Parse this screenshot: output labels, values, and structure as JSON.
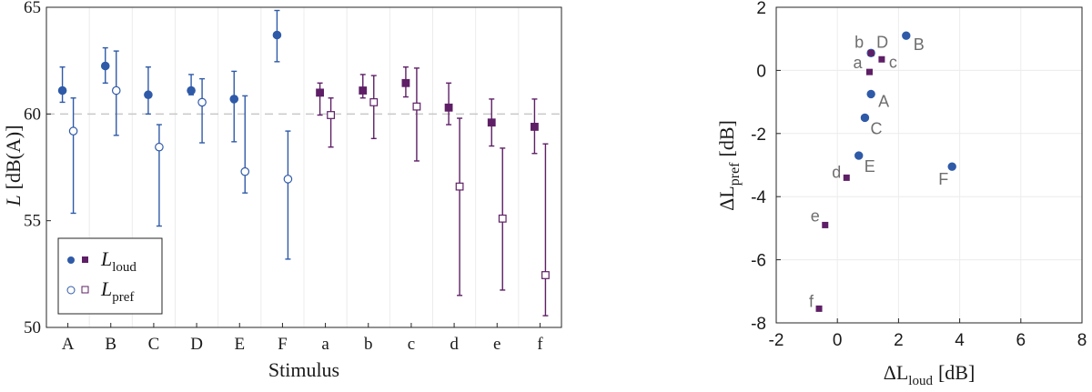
{
  "colors": {
    "blue": "#2f5aa8",
    "purple": "#5e1f66",
    "ref_line": "#c8c8c8",
    "grid": "#ececec"
  },
  "chart_data": [
    {
      "type": "scatter",
      "subtype": "error-bar",
      "xlabel": "Stimulus",
      "ylabel": "L",
      "ylabel_unit": "[dB(A)]",
      "categories": [
        "A",
        "B",
        "C",
        "D",
        "E",
        "F",
        "a",
        "b",
        "c",
        "d",
        "e",
        "f"
      ],
      "ylim": [
        50,
        65
      ],
      "yticks": [
        50,
        55,
        60,
        65
      ],
      "reference_line": 60,
      "grid": true,
      "legend_position": "bottom-left",
      "legend": [
        {
          "main": "L",
          "sub": "loud"
        },
        {
          "main": "L",
          "sub": "pref"
        }
      ],
      "series": [
        {
          "name": "L_loud",
          "marker": "filled",
          "values": [
            61.1,
            62.25,
            60.9,
            61.1,
            60.7,
            63.7,
            61.0,
            61.1,
            61.45,
            60.3,
            59.6,
            59.4
          ],
          "err_low": [
            60.55,
            61.45,
            60.0,
            60.9,
            58.7,
            62.45,
            59.95,
            60.75,
            60.8,
            59.5,
            58.5,
            58.15
          ],
          "err_high": [
            62.2,
            63.1,
            62.2,
            61.85,
            62.0,
            64.85,
            61.45,
            61.85,
            62.2,
            61.45,
            60.7,
            60.7
          ]
        },
        {
          "name": "L_pref",
          "marker": "open",
          "values": [
            59.2,
            61.1,
            58.45,
            60.55,
            57.3,
            56.95,
            59.95,
            60.55,
            60.35,
            56.6,
            55.1,
            52.45
          ],
          "err_low": [
            55.35,
            59.0,
            54.75,
            58.65,
            56.3,
            53.2,
            58.45,
            58.85,
            57.8,
            51.5,
            51.75,
            50.55
          ],
          "err_high": [
            60.75,
            62.95,
            59.5,
            61.65,
            60.85,
            59.2,
            60.75,
            61.8,
            62.15,
            59.8,
            58.4,
            58.6
          ]
        }
      ],
      "group_colors": [
        "blue",
        "blue",
        "blue",
        "blue",
        "blue",
        "blue",
        "purple",
        "purple",
        "purple",
        "purple",
        "purple",
        "purple"
      ]
    },
    {
      "type": "scatter",
      "xlabel": "ΔL",
      "xlabel_sub": "loud",
      "xlabel_unit": "[dB]",
      "ylabel": "ΔL",
      "ylabel_sub": "pref",
      "ylabel_unit": "[dB]",
      "xlim": [
        -2,
        8
      ],
      "ylim": [
        -8,
        2
      ],
      "xticks": [
        -2,
        0,
        2,
        4,
        6,
        8
      ],
      "yticks": [
        -8,
        -6,
        -4,
        -2,
        0,
        2
      ],
      "grid": true,
      "points": [
        {
          "label": "A",
          "x": 1.1,
          "y": -0.75,
          "group": "upper"
        },
        {
          "label": "B",
          "x": 2.25,
          "y": 1.1,
          "group": "upper"
        },
        {
          "label": "C",
          "x": 0.9,
          "y": -1.5,
          "group": "upper"
        },
        {
          "label": "D",
          "x": 1.1,
          "y": 0.55,
          "group": "upper"
        },
        {
          "label": "E",
          "x": 0.7,
          "y": -2.7,
          "group": "upper"
        },
        {
          "label": "F",
          "x": 3.75,
          "y": -3.05,
          "group": "upper"
        },
        {
          "label": "a",
          "x": 1.05,
          "y": -0.05,
          "group": "lower"
        },
        {
          "label": "b",
          "x": 1.1,
          "y": 0.55,
          "group": "lower"
        },
        {
          "label": "c",
          "x": 1.45,
          "y": 0.35,
          "group": "lower"
        },
        {
          "label": "d",
          "x": 0.3,
          "y": -3.4,
          "group": "lower"
        },
        {
          "label": "e",
          "x": -0.4,
          "y": -4.9,
          "group": "lower"
        },
        {
          "label": "f",
          "x": -0.6,
          "y": -7.55,
          "group": "lower"
        }
      ]
    }
  ]
}
